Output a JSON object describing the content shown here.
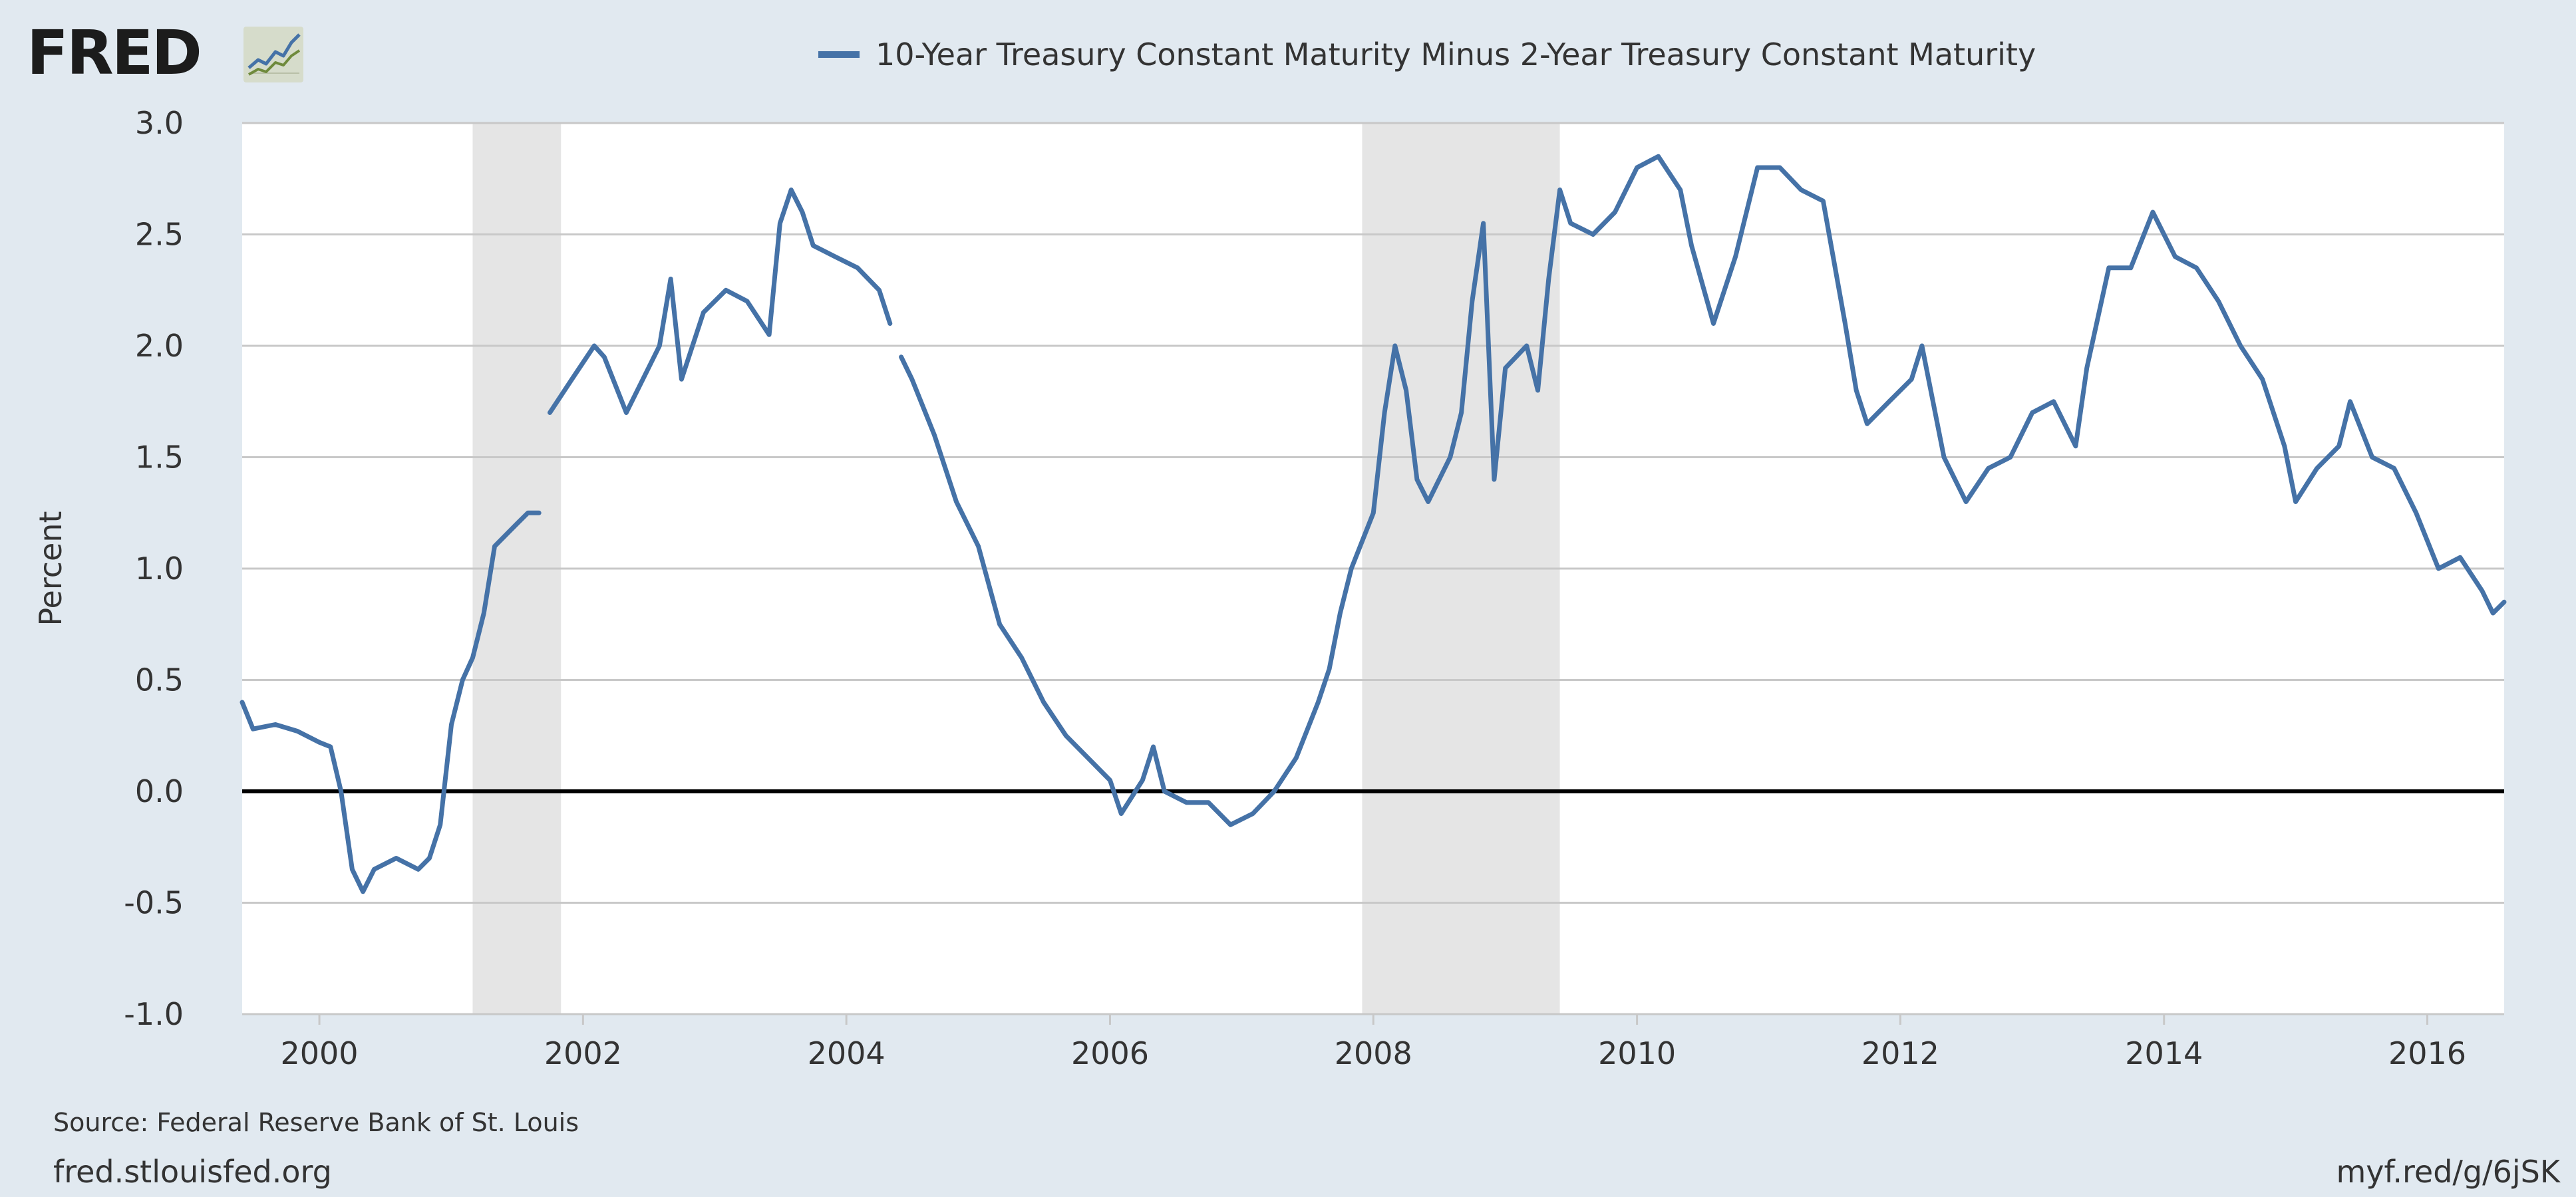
{
  "brand": {
    "name": "FRED",
    "logo_icon": "fred-line-graph-icon"
  },
  "footer": {
    "source": "Source: Federal Reserve Bank of St. Louis",
    "site": "fred.stlouisfed.org",
    "shortlink": "myf.red/g/6jSK"
  },
  "colors": {
    "series": "#4572a7",
    "background": "#e1e9f0",
    "recession": "#e5e5e5",
    "zero_line": "#000000"
  },
  "chart_data": {
    "type": "line",
    "title": "",
    "xlabel": "",
    "ylabel": "Percent",
    "ylim": [
      -1.0,
      3.0
    ],
    "xlim": [
      "1999-06-01",
      "2016-08-01"
    ],
    "y_ticks": [
      "-1.0",
      "-0.5",
      "0.0",
      "0.5",
      "1.0",
      "1.5",
      "2.0",
      "2.5",
      "3.0"
    ],
    "x_ticks": [
      "2000",
      "2002",
      "2004",
      "2006",
      "2008",
      "2010",
      "2012",
      "2014",
      "2016"
    ],
    "grid": "horizontal",
    "legend": "top-center",
    "zero_line": true,
    "recessions": [
      {
        "start": "2001-03-01",
        "end": "2001-11-01"
      },
      {
        "start": "2007-12-01",
        "end": "2009-06-01"
      }
    ],
    "series": [
      {
        "name": "10-Year Treasury Constant Maturity Minus 2-Year Treasury Constant Maturity",
        "points": [
          [
            "1999-06-01",
            0.4
          ],
          [
            "1999-07-01",
            0.28
          ],
          [
            "1999-09-01",
            0.3
          ],
          [
            "1999-11-01",
            0.27
          ],
          [
            "2000-01-01",
            0.22
          ],
          [
            "2000-02-01",
            0.2
          ],
          [
            "2000-03-01",
            0.0
          ],
          [
            "2000-04-01",
            -0.35
          ],
          [
            "2000-05-01",
            -0.45
          ],
          [
            "2000-06-01",
            -0.35
          ],
          [
            "2000-08-01",
            -0.3
          ],
          [
            "2000-10-01",
            -0.35
          ],
          [
            "2000-11-01",
            -0.3
          ],
          [
            "2000-12-01",
            -0.15
          ],
          [
            "2001-01-01",
            0.3
          ],
          [
            "2001-02-01",
            0.5
          ],
          [
            "2001-03-01",
            0.6
          ],
          [
            "2001-04-01",
            0.8
          ],
          [
            "2001-05-01",
            1.1
          ],
          [
            "2001-07-01",
            1.2
          ],
          [
            "2001-08-01",
            1.25
          ],
          [
            "2001-09-01",
            1.25
          ],
          null,
          [
            "2001-10-01",
            1.7
          ],
          [
            "2001-12-01",
            1.85
          ],
          [
            "2002-02-01",
            2.0
          ],
          [
            "2002-03-01",
            1.95
          ],
          [
            "2002-05-01",
            1.7
          ],
          [
            "2002-08-01",
            2.0
          ],
          [
            "2002-09-01",
            2.3
          ],
          [
            "2002-10-01",
            1.85
          ],
          [
            "2002-12-01",
            2.15
          ],
          [
            "2003-02-01",
            2.25
          ],
          [
            "2003-04-01",
            2.2
          ],
          [
            "2003-06-01",
            2.05
          ],
          [
            "2003-07-01",
            2.55
          ],
          [
            "2003-08-01",
            2.7
          ],
          [
            "2003-09-01",
            2.6
          ],
          [
            "2003-10-01",
            2.45
          ],
          [
            "2003-12-01",
            2.4
          ],
          [
            "2004-02-01",
            2.35
          ],
          [
            "2004-04-01",
            2.25
          ],
          [
            "2004-05-01",
            2.1
          ],
          null,
          [
            "2004-06-01",
            1.95
          ],
          [
            "2004-07-01",
            1.85
          ],
          [
            "2004-09-01",
            1.6
          ],
          [
            "2004-11-01",
            1.3
          ],
          [
            "2005-01-01",
            1.1
          ],
          [
            "2005-03-01",
            0.75
          ],
          [
            "2005-05-01",
            0.6
          ],
          [
            "2005-07-01",
            0.4
          ],
          [
            "2005-09-01",
            0.25
          ],
          [
            "2005-11-01",
            0.15
          ],
          [
            "2006-01-01",
            0.05
          ],
          [
            "2006-02-01",
            -0.1
          ],
          [
            "2006-04-01",
            0.05
          ],
          [
            "2006-05-01",
            0.2
          ],
          [
            "2006-06-01",
            0.0
          ],
          [
            "2006-08-01",
            -0.05
          ],
          [
            "2006-10-01",
            -0.05
          ],
          [
            "2006-12-01",
            -0.15
          ],
          [
            "2007-02-01",
            -0.1
          ],
          [
            "2007-04-01",
            0.0
          ],
          [
            "2007-06-01",
            0.15
          ],
          [
            "2007-08-01",
            0.4
          ],
          [
            "2007-09-01",
            0.55
          ],
          [
            "2007-10-01",
            0.8
          ],
          [
            "2007-11-01",
            1.0
          ],
          [
            "2008-01-01",
            1.25
          ],
          [
            "2008-02-01",
            1.7
          ],
          [
            "2008-03-01",
            2.0
          ],
          [
            "2008-04-01",
            1.8
          ],
          [
            "2008-05-01",
            1.4
          ],
          [
            "2008-06-01",
            1.3
          ],
          [
            "2008-08-01",
            1.5
          ],
          [
            "2008-09-01",
            1.7
          ],
          [
            "2008-10-01",
            2.2
          ],
          [
            "2008-11-01",
            2.55
          ],
          [
            "2008-12-01",
            1.4
          ],
          [
            "2009-01-01",
            1.9
          ],
          [
            "2009-03-01",
            2.0
          ],
          [
            "2009-04-01",
            1.8
          ],
          [
            "2009-05-01",
            2.3
          ],
          [
            "2009-06-01",
            2.7
          ],
          [
            "2009-07-01",
            2.55
          ],
          [
            "2009-09-01",
            2.5
          ],
          [
            "2009-11-01",
            2.6
          ],
          [
            "2010-01-01",
            2.8
          ],
          [
            "2010-03-01",
            2.85
          ],
          [
            "2010-05-01",
            2.7
          ],
          [
            "2010-06-01",
            2.45
          ],
          [
            "2010-08-01",
            2.1
          ],
          [
            "2010-10-01",
            2.4
          ],
          [
            "2010-12-01",
            2.8
          ],
          [
            "2011-02-01",
            2.8
          ],
          [
            "2011-04-01",
            2.7
          ],
          [
            "2011-06-01",
            2.65
          ],
          [
            "2011-08-01",
            2.1
          ],
          [
            "2011-09-01",
            1.8
          ],
          [
            "2011-10-01",
            1.65
          ],
          [
            "2011-12-01",
            1.75
          ],
          [
            "2012-02-01",
            1.85
          ],
          [
            "2012-03-01",
            2.0
          ],
          [
            "2012-05-01",
            1.5
          ],
          [
            "2012-07-01",
            1.3
          ],
          [
            "2012-09-01",
            1.45
          ],
          [
            "2012-11-01",
            1.5
          ],
          [
            "2013-01-01",
            1.7
          ],
          [
            "2013-03-01",
            1.75
          ],
          [
            "2013-05-01",
            1.55
          ],
          [
            "2013-06-01",
            1.9
          ],
          [
            "2013-08-01",
            2.35
          ],
          [
            "2013-10-01",
            2.35
          ],
          [
            "2013-12-01",
            2.6
          ],
          [
            "2014-02-01",
            2.4
          ],
          [
            "2014-04-01",
            2.35
          ],
          [
            "2014-06-01",
            2.2
          ],
          [
            "2014-08-01",
            2.0
          ],
          [
            "2014-10-01",
            1.85
          ],
          [
            "2014-12-01",
            1.55
          ],
          [
            "2015-01-01",
            1.3
          ],
          [
            "2015-03-01",
            1.45
          ],
          [
            "2015-05-01",
            1.55
          ],
          [
            "2015-06-01",
            1.75
          ],
          [
            "2015-08-01",
            1.5
          ],
          [
            "2015-10-01",
            1.45
          ],
          [
            "2015-12-01",
            1.25
          ],
          [
            "2016-02-01",
            1.0
          ],
          [
            "2016-04-01",
            1.05
          ],
          [
            "2016-06-01",
            0.9
          ],
          [
            "2016-07-01",
            0.8
          ],
          [
            "2016-08-01",
            0.85
          ]
        ]
      }
    ]
  }
}
